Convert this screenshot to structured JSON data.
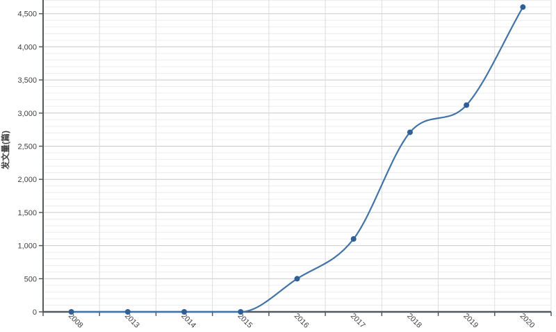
{
  "chart_data": {
    "type": "line",
    "smooth": true,
    "title": "",
    "xlabel": "",
    "ylabel": "发文量(篇)",
    "categories": [
      "2008",
      "2013",
      "2014",
      "2015",
      "2016",
      "2017",
      "2018",
      "2019",
      "2020"
    ],
    "values": [
      0,
      0,
      0,
      0,
      500,
      1100,
      2710,
      3120,
      4600
    ],
    "y_tick_labels": [
      "0",
      "500",
      "1,000",
      "1,500",
      "2,000",
      "2,500",
      "3,000",
      "3,500",
      "4,000",
      "4,500"
    ],
    "y_tick_step": 500,
    "y_minor_step": 100,
    "ylim": [
      0,
      4740
    ],
    "grid": "horizontal major + minor, vertical at band boundaries",
    "legend": "none",
    "marker_shape": "circle",
    "colors": {
      "line": "#4273a6",
      "marker": "#2f5f96",
      "axis": "#55595e",
      "tick": "#55595e",
      "grid_major": "#c9c9c9",
      "grid_minor": "#ececec",
      "grid_vertical": "#dcdcdc",
      "tick_label": "#404040",
      "axis_title": "#333333",
      "background": "#ffffff"
    }
  }
}
